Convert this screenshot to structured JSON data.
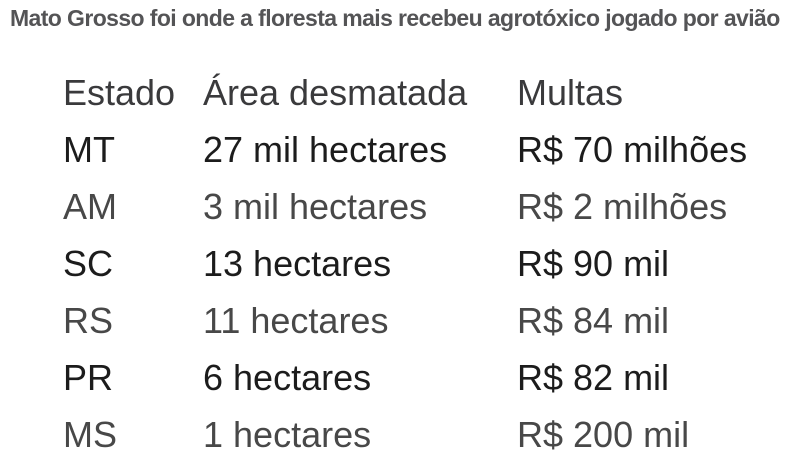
{
  "page": {
    "title": "Mato Grosso foi onde a floresta mais recebeu agrotóxico jogado por avião"
  },
  "colors": {
    "background": "#ffffff",
    "title_text": "#545456",
    "header_text": "#3a3a3c",
    "row_dark_text": "#1c1c1c",
    "row_gray_text": "#484848"
  },
  "table": {
    "columns": [
      "Estado",
      "Área desmatada",
      "Multas"
    ],
    "rows": [
      {
        "estado": "MT",
        "area": "27 mil hectares",
        "multas": "R$ 70 milhões"
      },
      {
        "estado": "AM",
        "area": "3 mil hectares",
        "multas": "R$ 2 milhões"
      },
      {
        "estado": "SC",
        "area": "13 hectares",
        "multas": "R$ 90 mil"
      },
      {
        "estado": "RS",
        "area": "11 hectares",
        "multas": "R$ 84 mil"
      },
      {
        "estado": "PR",
        "area": "6 hectares",
        "multas": "R$ 82 mil"
      },
      {
        "estado": "MS",
        "area": "1 hectares",
        "multas": "R$ 200 mil"
      }
    ]
  },
  "chart_data": {
    "type": "table",
    "title": "Mato Grosso foi onde a floresta mais recebeu agrotóxico jogado por avião",
    "columns": [
      "Estado",
      "Área desmatada",
      "Multas"
    ],
    "rows": [
      [
        "MT",
        "27 mil hectares",
        "R$ 70 milhões"
      ],
      [
        "AM",
        "3 mil hectares",
        "R$ 2 milhões"
      ],
      [
        "SC",
        "13 hectares",
        "R$ 90 mil"
      ],
      [
        "RS",
        "11 hectares",
        "R$ 84 mil"
      ],
      [
        "PR",
        "6 hectares",
        "R$ 82 mil"
      ],
      [
        "MS",
        "1 hectares",
        "R$ 200 mil"
      ]
    ],
    "notes": "Static infographic table; dark rows (MT, SC, PR) alternate with gray rows (AM, RS, MS)."
  }
}
